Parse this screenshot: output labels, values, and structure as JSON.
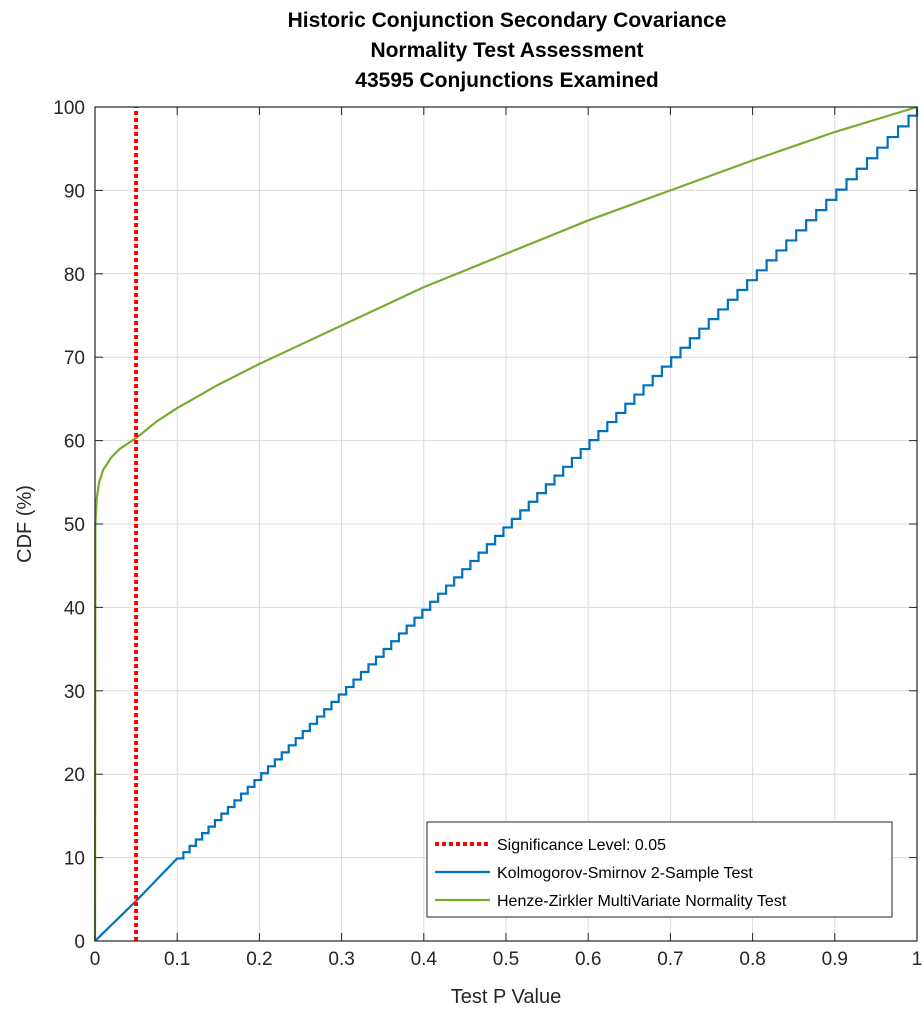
{
  "chart_data": {
    "type": "line",
    "title": [
      "Historic Conjunction Secondary Covariance",
      "Normality Test Assessment",
      "43595 Conjunctions Examined"
    ],
    "xlabel": "Test P Value",
    "ylabel": "CDF (%)",
    "xlim": [
      0,
      1
    ],
    "ylim": [
      0,
      100
    ],
    "xticks": [
      0,
      0.1,
      0.2,
      0.3,
      0.4,
      0.5,
      0.6,
      0.7,
      0.8,
      0.9,
      1
    ],
    "xtick_labels": [
      "0",
      "0.1",
      "0.2",
      "0.3",
      "0.4",
      "0.5",
      "0.6",
      "0.7",
      "0.8",
      "0.9",
      "1"
    ],
    "yticks": [
      0,
      10,
      20,
      30,
      40,
      50,
      60,
      70,
      80,
      90,
      100
    ],
    "ytick_labels": [
      "0",
      "10",
      "20",
      "30",
      "40",
      "50",
      "60",
      "70",
      "80",
      "90",
      "100"
    ],
    "grid": true,
    "legend_position": "bottom-right",
    "series": [
      {
        "name": "Significance Level: 0.05",
        "style": "dotted",
        "color": "#ff0000",
        "x": [
          0.05,
          0.05
        ],
        "y": [
          0,
          100
        ]
      },
      {
        "name": "Kolmogorov-Smirnov 2-Sample Test",
        "style": "solid",
        "color": "#0072bd",
        "x": [
          0,
          0.05,
          0.1,
          0.2,
          0.3,
          0.4,
          0.5,
          0.6,
          0.7,
          0.8,
          0.9,
          1
        ],
        "y": [
          0,
          4.8,
          9.9,
          19.9,
          29.9,
          39.9,
          49.9,
          59.9,
          69.9,
          79.9,
          89.9,
          100
        ]
      },
      {
        "name": "Henze-Zirkler MultiVariate Normality Test",
        "style": "solid",
        "color": "#77ac30",
        "x": [
          0,
          0.0005,
          0.002,
          0.005,
          0.01,
          0.02,
          0.03,
          0.05,
          0.075,
          0.1,
          0.15,
          0.2,
          0.25,
          0.3,
          0.35,
          0.4,
          0.45,
          0.5,
          0.55,
          0.6,
          0.65,
          0.7,
          0.75,
          0.8,
          0.85,
          0.9,
          0.95,
          1
        ],
        "y": [
          0,
          50,
          53,
          55,
          56.5,
          58,
          59,
          60.3,
          62.3,
          63.9,
          66.7,
          69.2,
          71.5,
          73.8,
          76.1,
          78.4,
          80.4,
          82.4,
          84.4,
          86.4,
          88.2,
          90.0,
          91.8,
          93.6,
          95.3,
          97.0,
          98.5,
          100
        ]
      }
    ]
  }
}
